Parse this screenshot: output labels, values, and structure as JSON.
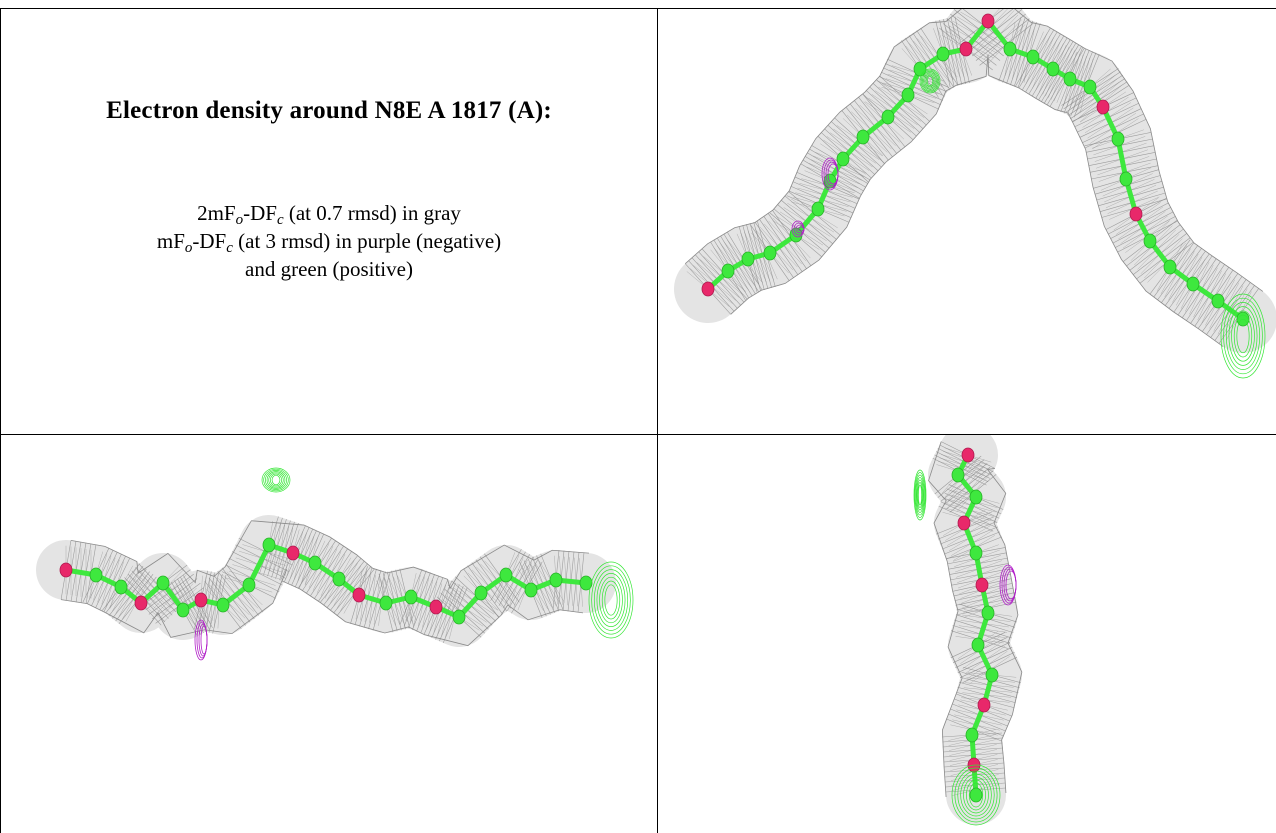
{
  "panel": {
    "heading": "Electron density around N8E A 1817 (A):",
    "line1": {
      "prefix": "2mF",
      "sub1": "o",
      "mid": "-DF",
      "sub2": "c",
      "suffix": " (at 0.7 rmsd) in gray"
    },
    "line2": {
      "prefix": "mF",
      "sub1": "o",
      "mid": "-DF",
      "sub2": "c",
      "suffix": " (at 3 rmsd) in purple (negative)"
    },
    "line3": "and green (positive)"
  },
  "colors": {
    "mesh_gray": "#8a8a8a",
    "carbon_green": "#3ee83e",
    "oxygen_pink": "#e8286a",
    "negative_purple": "#b11fc8",
    "positive_green": "#33e633"
  },
  "views": [
    {
      "name": "view-top-right"
    },
    {
      "name": "view-bottom-left"
    },
    {
      "name": "view-bottom-right"
    }
  ]
}
